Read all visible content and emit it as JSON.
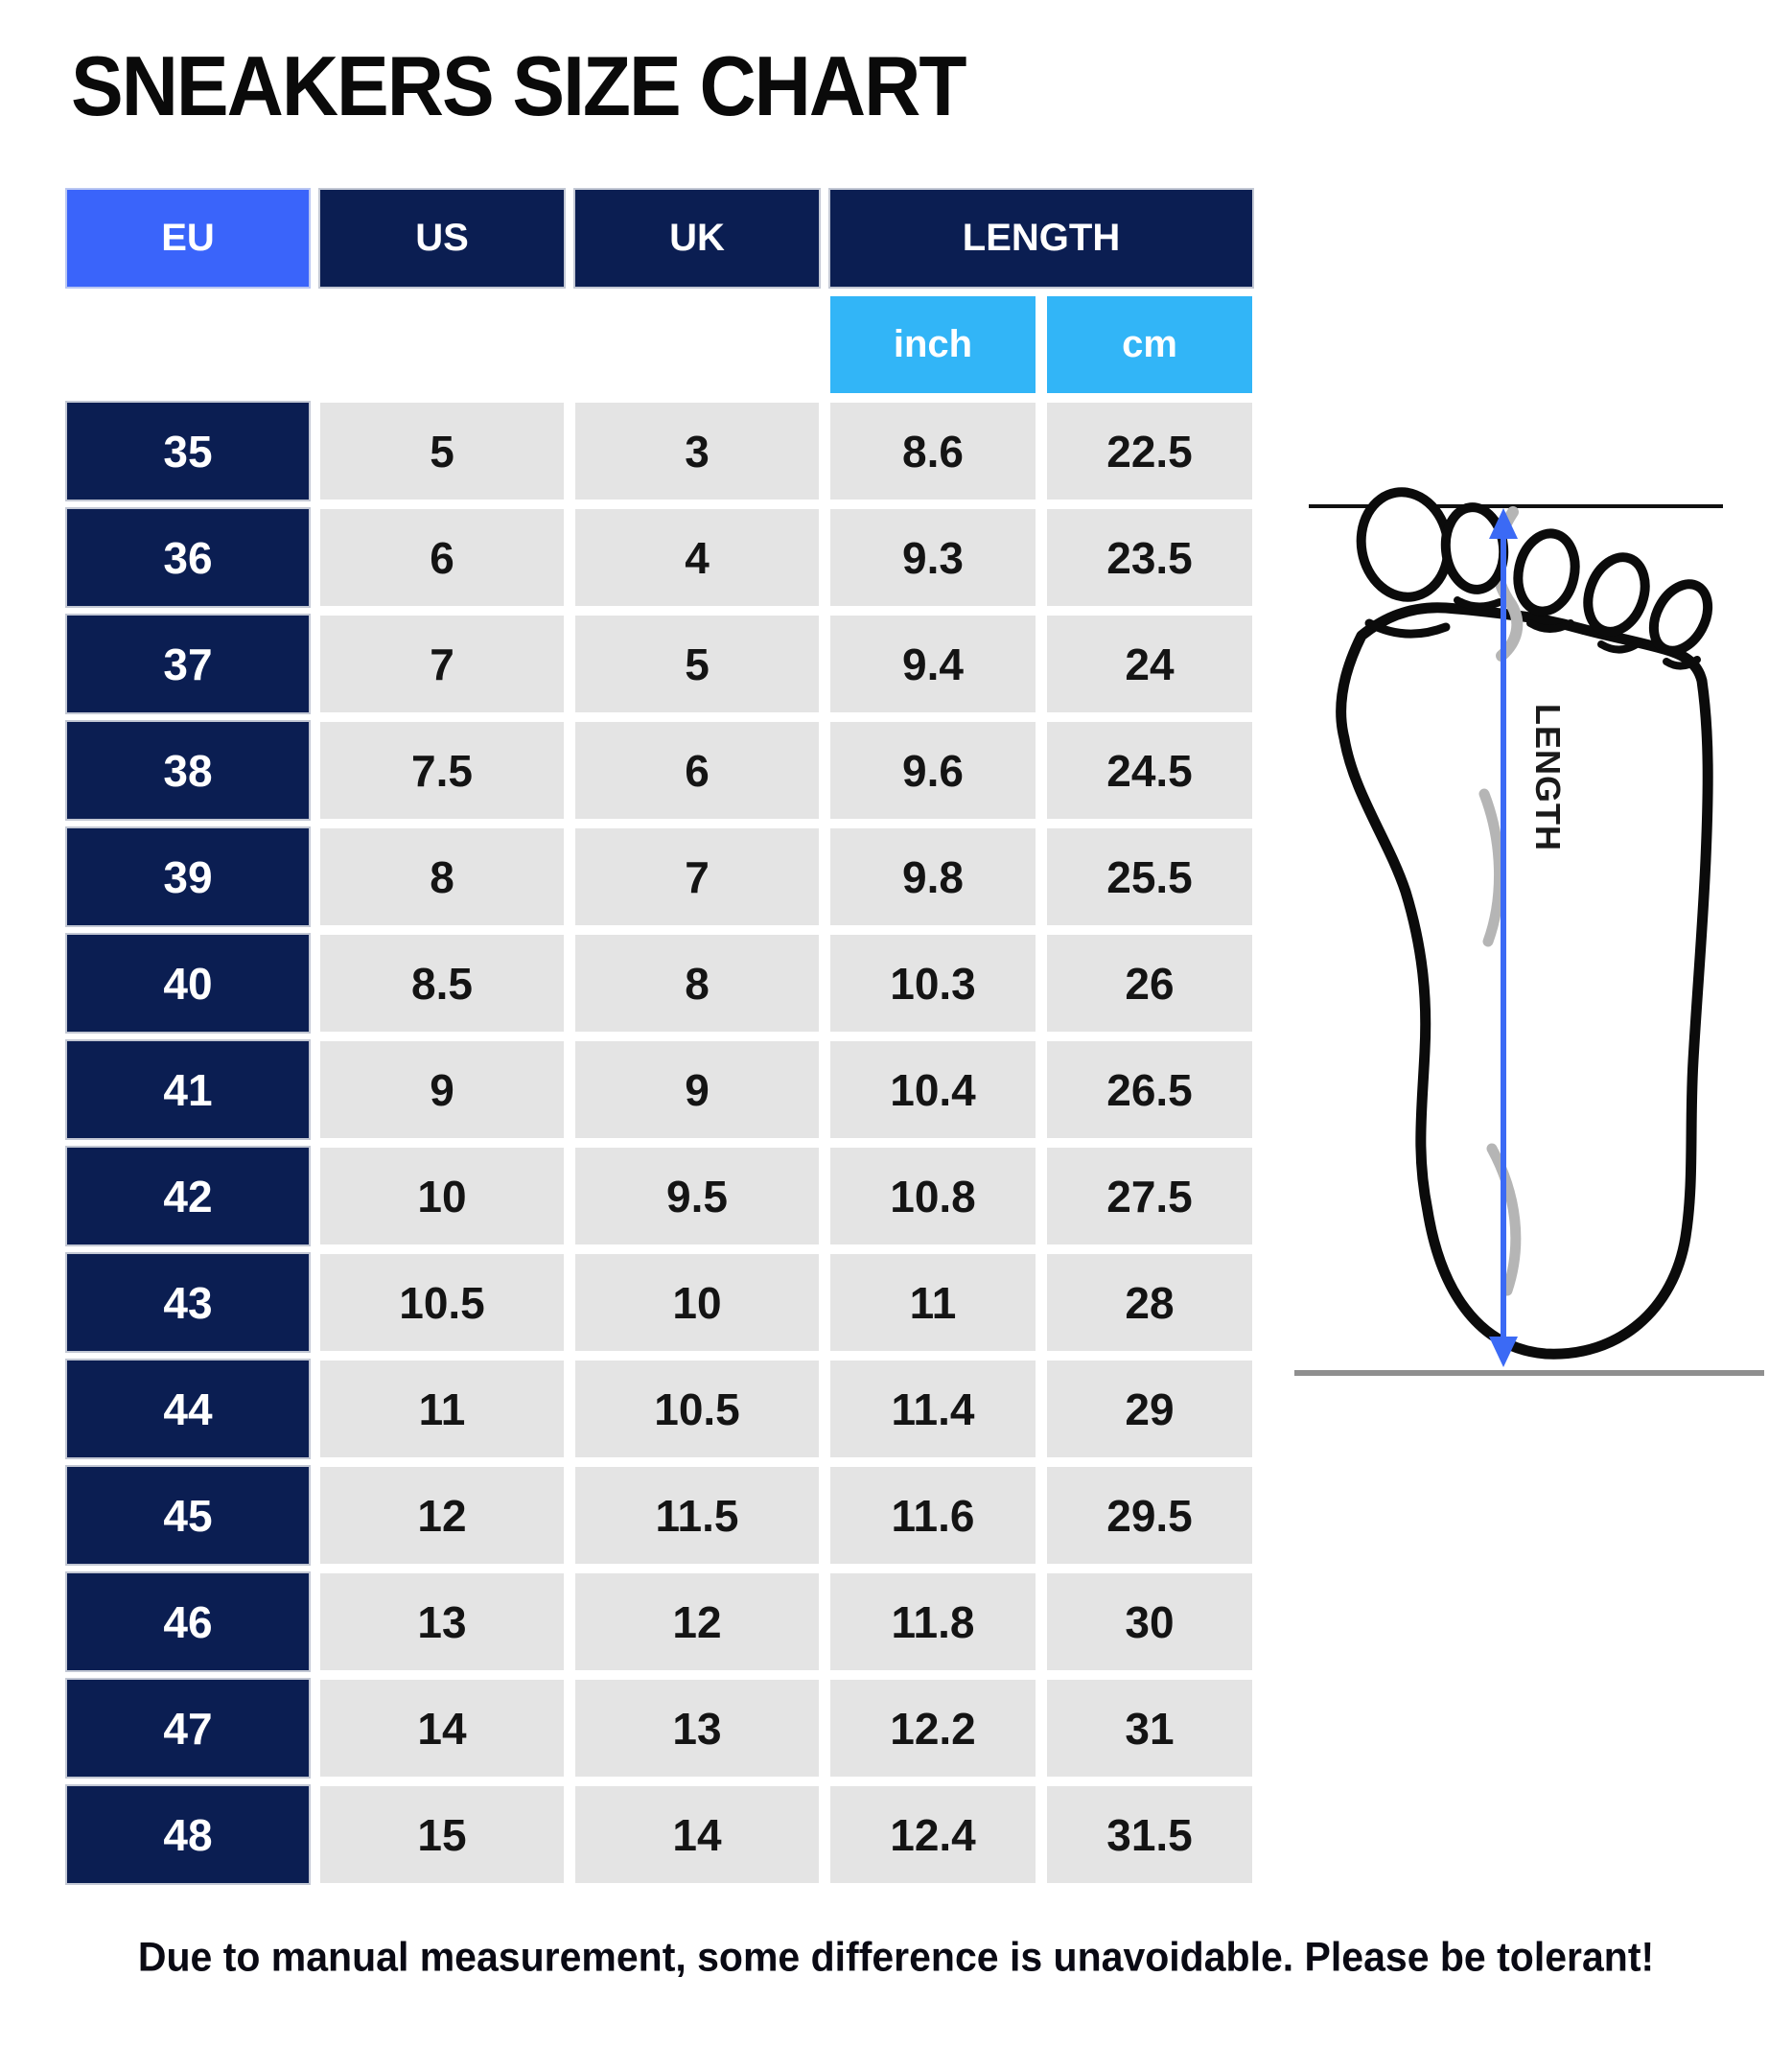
{
  "title": "SNEAKERS SIZE CHART",
  "table": {
    "headers": {
      "eu": "EU",
      "us": "US",
      "uk": "UK",
      "length": "LENGTH",
      "inch": "inch",
      "cm": "cm"
    }
  },
  "chart_data": {
    "type": "table",
    "title": "SNEAKERS SIZE CHART",
    "columns": [
      "EU",
      "US",
      "UK",
      "LENGTH inch",
      "LENGTH cm"
    ],
    "rows": [
      [
        "35",
        "5",
        "3",
        "8.6",
        "22.5"
      ],
      [
        "36",
        "6",
        "4",
        "9.3",
        "23.5"
      ],
      [
        "37",
        "7",
        "5",
        "9.4",
        "24"
      ],
      [
        "38",
        "7.5",
        "6",
        "9.6",
        "24.5"
      ],
      [
        "39",
        "8",
        "7",
        "9.8",
        "25.5"
      ],
      [
        "40",
        "8.5",
        "8",
        "10.3",
        "26"
      ],
      [
        "41",
        "9",
        "9",
        "10.4",
        "26.5"
      ],
      [
        "42",
        "10",
        "9.5",
        "10.8",
        "27.5"
      ],
      [
        "43",
        "10.5",
        "10",
        "11",
        "28"
      ],
      [
        "44",
        "11",
        "10.5",
        "11.4",
        "29"
      ],
      [
        "45",
        "12",
        "11.5",
        "11.6",
        "29.5"
      ],
      [
        "46",
        "13",
        "12",
        "11.8",
        "30"
      ],
      [
        "47",
        "14",
        "13",
        "12.2",
        "31"
      ],
      [
        "48",
        "15",
        "14",
        "12.4",
        "31.5"
      ]
    ]
  },
  "diagram": {
    "length_label": "LENGTH"
  },
  "footer": "Due to manual measurement, some difference is unavoidable. Please be tolerant!",
  "colors": {
    "eu_header_blue": "#3A64FA",
    "navy": "#0B1E52",
    "light_blue": "#32B5F7",
    "cell_gray": "#E4E4E4",
    "arrow_blue": "#3B6AF5"
  }
}
